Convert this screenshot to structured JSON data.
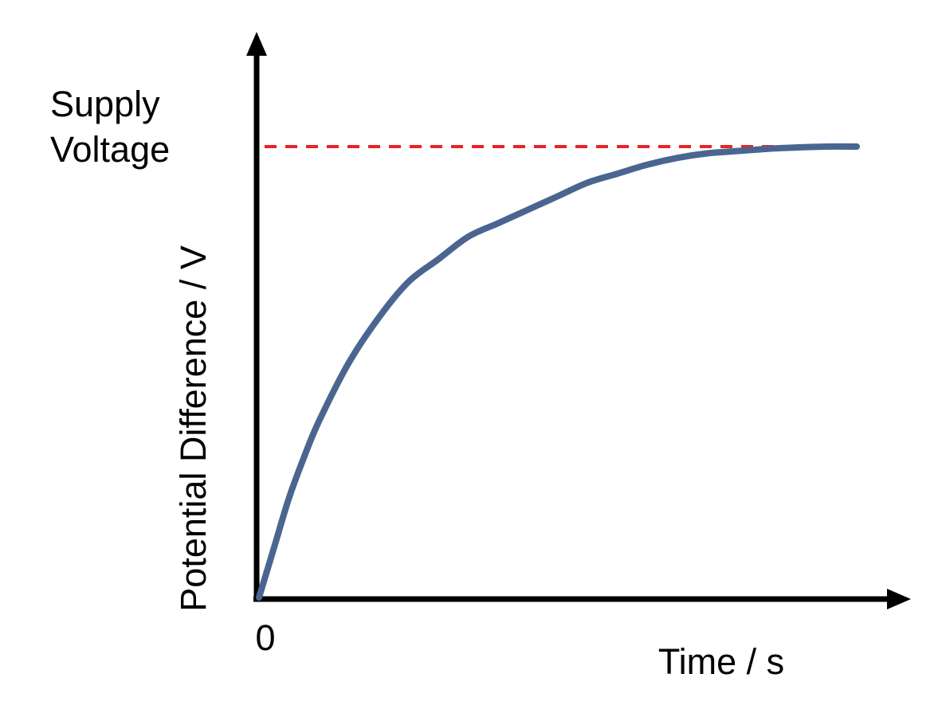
{
  "chart_data": {
    "type": "line",
    "title": "",
    "xlabel": "Time / s",
    "ylabel": "Potential Difference / V",
    "origin_label": "0",
    "reference_line": {
      "label_line1": "Supply",
      "label_line2": "Voltage",
      "value": 1.0,
      "style": "dashed",
      "color": "#e8232a"
    },
    "xlim": [
      0,
      10
    ],
    "ylim": [
      0,
      1.0
    ],
    "grid": false,
    "legend": "none",
    "series": [
      {
        "color": "#4a6690",
        "x": [
          0,
          0.25,
          0.5,
          0.75,
          1,
          1.5,
          2,
          2.5,
          3,
          3.5,
          4,
          4.5,
          5,
          5.5,
          6,
          6.5,
          7,
          7.5,
          8,
          8.5,
          9,
          9.5,
          10
        ],
        "y": [
          0,
          0.11,
          0.22,
          0.31,
          0.39,
          0.52,
          0.62,
          0.7,
          0.75,
          0.8,
          0.83,
          0.86,
          0.89,
          0.92,
          0.94,
          0.96,
          0.975,
          0.985,
          0.99,
          0.995,
          0.998,
          1.0,
          1.0
        ]
      }
    ],
    "colors": {
      "axes": "#000000",
      "curve": "#4a6690",
      "reference": "#e8232a"
    }
  }
}
